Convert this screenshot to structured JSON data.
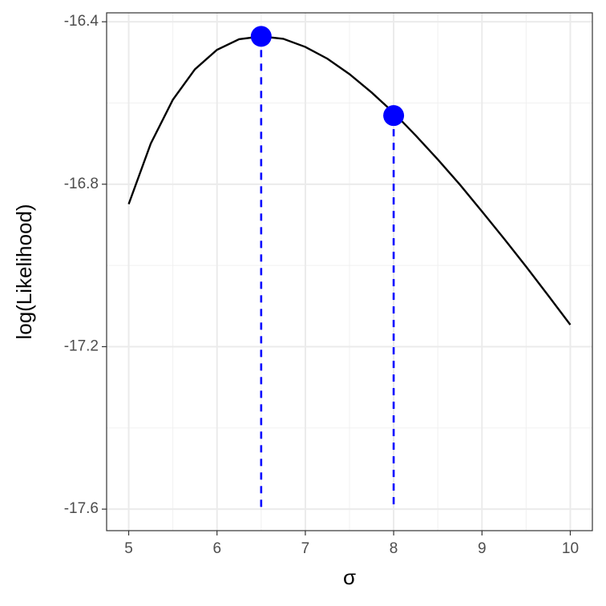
{
  "chart_data": {
    "type": "line",
    "xlabel": "σ",
    "ylabel": "log(Likelihood)",
    "xlim": [
      4.75,
      10.25
    ],
    "ylim": [
      -17.653,
      -16.378
    ],
    "xticks": [
      5,
      6,
      7,
      8,
      9,
      10
    ],
    "yticks": [
      -16.4,
      -16.8,
      -17.2,
      -17.6
    ],
    "minor_xticks": [
      5.5,
      6.5,
      7.5,
      8.5,
      9.5
    ],
    "minor_yticks": [
      -16.6,
      -17.0,
      -17.4
    ],
    "grid": true,
    "series": [
      {
        "color": "#000000",
        "x": [
          5,
          5.25,
          5.5,
          5.75,
          6,
          6.25,
          6.5,
          6.75,
          7,
          7.25,
          7.5,
          7.75,
          8,
          8.25,
          8.5,
          8.75,
          9,
          9.25,
          9.5,
          9.75,
          10
        ],
        "values": [
          -16.849,
          -16.7,
          -16.592,
          -16.517,
          -16.469,
          -16.443,
          -16.436,
          -16.442,
          -16.462,
          -16.491,
          -16.529,
          -16.574,
          -16.624,
          -16.68,
          -16.739,
          -16.801,
          -16.867,
          -16.934,
          -17.003,
          -17.074,
          -17.146
        ]
      }
    ],
    "points": {
      "color": "#0000ff",
      "x": [
        6.5,
        8
      ],
      "values": [
        -16.436,
        -16.631
      ],
      "line_end": -17.6
    }
  }
}
